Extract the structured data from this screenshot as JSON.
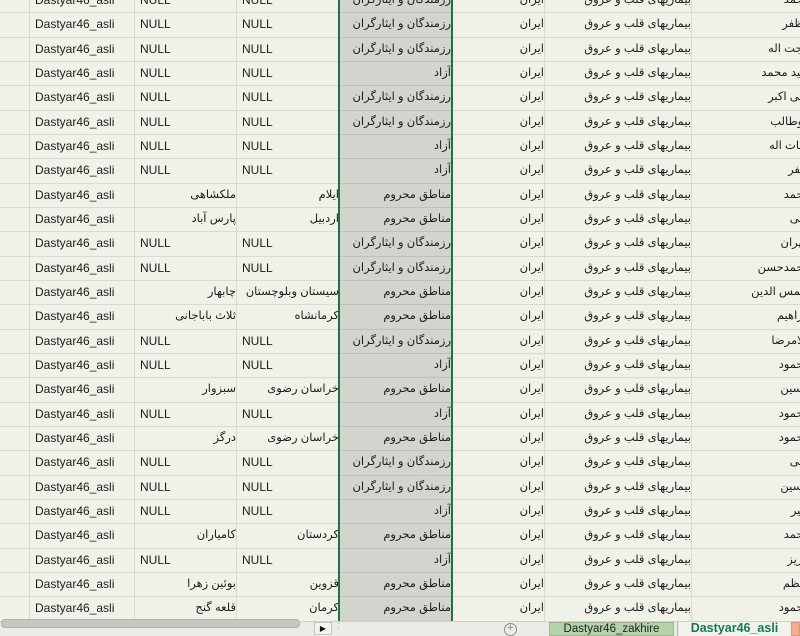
{
  "grid": {
    "selected_column_color": "#d2d4cd",
    "selection_border_color": "#1f7246",
    "cell_background": "#f0f1e9",
    "columns": [
      "edge",
      "source",
      "city",
      "province",
      "quota",
      "country",
      "disease",
      "first_name"
    ],
    "quota_values": [
      "رزمندگان و ایثارگران",
      "آزاد",
      "مناطق محروم"
    ]
  },
  "rows": [
    {
      "source": "Dastyar46_asli",
      "city": "NULL",
      "province": "NULL",
      "quota": "رزمندگان و ایثارگران",
      "country": "ایران",
      "disease": "بیماریهای قلب و عروق",
      "name": "محمد"
    },
    {
      "source": "Dastyar46_asli",
      "city": "NULL",
      "province": "NULL",
      "quota": "رزمندگان و ایثارگران",
      "country": "ایران",
      "disease": "بیماریهای قلب و عروق",
      "name": "مظفر"
    },
    {
      "source": "Dastyar46_asli",
      "city": "NULL",
      "province": "NULL",
      "quota": "رزمندگان و ایثارگران",
      "country": "ایران",
      "disease": "بیماریهای قلب و عروق",
      "name": "حجت اله"
    },
    {
      "source": "Dastyar46_asli",
      "city": "NULL",
      "province": "NULL",
      "quota": "آزاد",
      "country": "ایران",
      "disease": "بیماریهای قلب و عروق",
      "name": "سید محمد"
    },
    {
      "source": "Dastyar46_asli",
      "city": "NULL",
      "province": "NULL",
      "quota": "رزمندگان و ایثارگران",
      "country": "ایران",
      "disease": "بیماریهای قلب و عروق",
      "name": "علی اکبر"
    },
    {
      "source": "Dastyar46_asli",
      "city": "NULL",
      "province": "NULL",
      "quota": "رزمندگان و ایثارگران",
      "country": "ایران",
      "disease": "بیماریهای قلب و عروق",
      "name": "ابوطالب"
    },
    {
      "source": "Dastyar46_asli",
      "city": "NULL",
      "province": "NULL",
      "quota": "آزاد",
      "country": "ایران",
      "disease": "بیماریهای قلب و عروق",
      "name": "نجات اله"
    },
    {
      "source": "Dastyar46_asli",
      "city": "NULL",
      "province": "NULL",
      "quota": "آزاد",
      "country": "ایران",
      "disease": "بیماریهای قلب و عروق",
      "name": "صفر"
    },
    {
      "source": "Dastyar46_asli",
      "city": "ملکشاهی",
      "province": "ایلام",
      "quota": "مناطق محروم",
      "country": "ایران",
      "disease": "بیماریهای قلب و عروق",
      "name": "محمد"
    },
    {
      "source": "Dastyar46_asli",
      "city": "پارس آباد",
      "province": "اردبیل",
      "quota": "مناطق محروم",
      "country": "ایران",
      "disease": "بیماریهای قلب و عروق",
      "name": "علی"
    },
    {
      "source": "Dastyar46_asli",
      "city": "NULL",
      "province": "NULL",
      "quota": "رزمندگان و ایثارگران",
      "country": "ایران",
      "disease": "بیماریهای قلب و عروق",
      "name": "مهران"
    },
    {
      "source": "Dastyar46_asli",
      "city": "NULL",
      "province": "NULL",
      "quota": "رزمندگان و ایثارگران",
      "country": "ایران",
      "disease": "بیماریهای قلب و عروق",
      "name": "محمدحسن"
    },
    {
      "source": "Dastyar46_asli",
      "city": "چابهار",
      "province": "سیستان وبلوچستان",
      "quota": "مناطق محروم",
      "country": "ایران",
      "disease": "بیماریهای قلب و عروق",
      "name": "شمس الدین"
    },
    {
      "source": "Dastyar46_asli",
      "city": "ثلاث باباجانی",
      "province": "کرمانشاه",
      "quota": "مناطق محروم",
      "country": "ایران",
      "disease": "بیماریهای قلب و عروق",
      "name": "ابراهیم"
    },
    {
      "source": "Dastyar46_asli",
      "city": "NULL",
      "province": "NULL",
      "quota": "رزمندگان و ایثارگران",
      "country": "ایران",
      "disease": "بیماریهای قلب و عروق",
      "name": "غلامرضا"
    },
    {
      "source": "Dastyar46_asli",
      "city": "NULL",
      "province": "NULL",
      "quota": "آزاد",
      "country": "ایران",
      "disease": "بیماریهای قلب و عروق",
      "name": "محمود"
    },
    {
      "source": "Dastyar46_asli",
      "city": "سبزوار",
      "province": "خراسان رضوی",
      "quota": "مناطق محروم",
      "country": "ایران",
      "disease": "بیماریهای قلب و عروق",
      "name": "حسین"
    },
    {
      "source": "Dastyar46_asli",
      "city": "NULL",
      "province": "NULL",
      "quota": "آزاد",
      "country": "ایران",
      "disease": "بیماریهای قلب و عروق",
      "name": "محمود"
    },
    {
      "source": "Dastyar46_asli",
      "city": "درگز",
      "province": "خراسان رضوی",
      "quota": "مناطق محروم",
      "country": "ایران",
      "disease": "بیماریهای قلب و عروق",
      "name": "محمود"
    },
    {
      "source": "Dastyar46_asli",
      "city": "NULL",
      "province": "NULL",
      "quota": "رزمندگان و ایثارگران",
      "country": "ایران",
      "disease": "بیماریهای قلب و عروق",
      "name": "علی"
    },
    {
      "source": "Dastyar46_asli",
      "city": "NULL",
      "province": "NULL",
      "quota": "رزمندگان و ایثارگران",
      "country": "ایران",
      "disease": "بیماریهای قلب و عروق",
      "name": "حسین"
    },
    {
      "source": "Dastyar46_asli",
      "city": "NULL",
      "province": "NULL",
      "quota": "آزاد",
      "country": "ایران",
      "disease": "بیماریهای قلب و عروق",
      "name": "امیر"
    },
    {
      "source": "Dastyar46_asli",
      "city": "کامیاران",
      "province": "کردستان",
      "quota": "مناطق محروم",
      "country": "ایران",
      "disease": "بیماریهای قلب و عروق",
      "name": "محمد"
    },
    {
      "source": "Dastyar46_asli",
      "city": "NULL",
      "province": "NULL",
      "quota": "آزاد",
      "country": "ایران",
      "disease": "بیماریهای قلب و عروق",
      "name": "عزیز"
    },
    {
      "source": "Dastyar46_asli",
      "city": "بوئین زهرا",
      "province": "قزوین",
      "quota": "مناطق محروم",
      "country": "ایران",
      "disease": "بیماریهای قلب و عروق",
      "name": "اعظم"
    },
    {
      "source": "Dastyar46_asli",
      "city": "قلعه گنج",
      "province": "کرمان",
      "quota": "مناطق محروم",
      "country": "ایران",
      "disease": "بیماریهای قلب و عروق",
      "name": "محمود"
    }
  ],
  "tabbar": {
    "nav_arrow": "▶",
    "grip": "⁚",
    "add_sheet_label": "+",
    "tabs": [
      {
        "label": "Dastyar46_zakhire",
        "color": "#b5d3ab",
        "active": false
      },
      {
        "label": "Dastyar46_asli",
        "color": "#177858",
        "active": true
      }
    ]
  }
}
